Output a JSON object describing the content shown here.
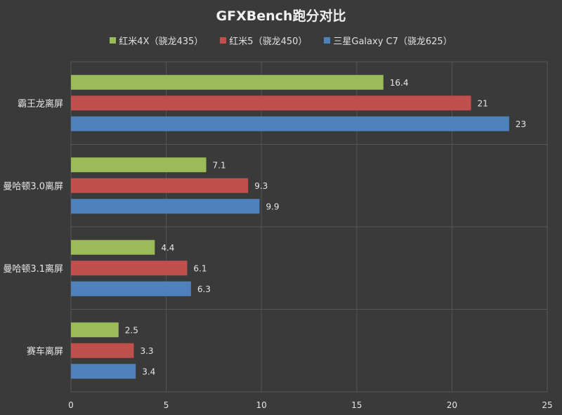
{
  "chart_data": {
    "type": "bar",
    "orientation": "horizontal",
    "title": "GFXBench跑分对比",
    "categories": [
      "霸王龙离屏",
      "曼哈顿3.0离屏",
      "曼哈顿3.1离屏",
      "赛车离屏"
    ],
    "series": [
      {
        "name": "红米4X（骁龙435）",
        "color": "#9bbb59",
        "values": [
          16.4,
          7.1,
          4.4,
          2.5
        ]
      },
      {
        "name": "红米5（骁龙450）",
        "color": "#c0504d",
        "values": [
          21,
          9.3,
          6.1,
          3.3
        ]
      },
      {
        "name": "三星Galaxy C7（骁龙625）",
        "color": "#4f81bd",
        "values": [
          23,
          9.9,
          6.3,
          3.4
        ]
      }
    ],
    "xlim": [
      0,
      25
    ],
    "xticks": [
      0,
      5,
      10,
      15,
      20,
      25
    ],
    "xlabel": "",
    "ylabel": "",
    "grid": true,
    "legend_position": "top"
  },
  "style": {
    "background": "#3a3a3a",
    "grid_color": "#555555",
    "text_color": "#e6e6e6"
  }
}
